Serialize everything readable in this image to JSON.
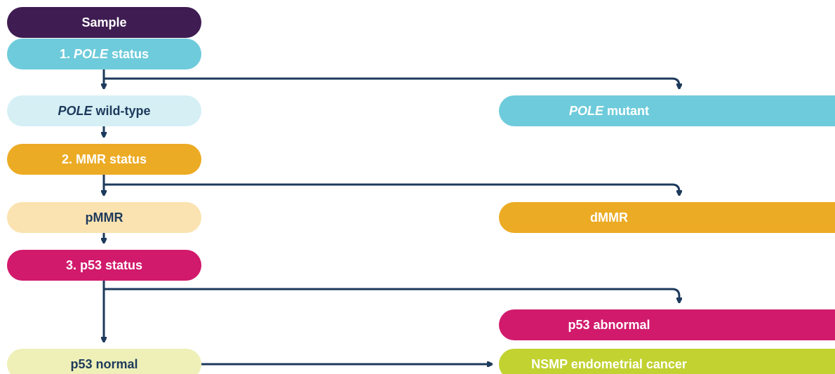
{
  "nodes": [
    {
      "label": [
        {
          "text": "Sample"
        }
      ],
      "color": "#3f1d52",
      "text_color": "#ffffff"
    },
    {
      "label": [
        {
          "text": "1. "
        },
        {
          "text": "POLE",
          "style": "italic"
        },
        {
          "text": " status"
        }
      ],
      "color": "#6ecbdb",
      "text_color": "#ffffff"
    },
    {
      "label": [
        {
          "text": "POLE",
          "style": "italic"
        },
        {
          "text": " wild-type"
        }
      ],
      "color": "#d6eff5",
      "text_color": "#1d3a5c"
    },
    {
      "label": [
        {
          "text": "2. MMR status"
        }
      ],
      "color": "#ecab24",
      "text_color": "#ffffff"
    },
    {
      "label": [
        {
          "text": "pMMR"
        }
      ],
      "color": "#fae3b0",
      "text_color": "#1d3a5c"
    },
    {
      "label": [
        {
          "text": "3. p53 status"
        }
      ],
      "color": "#d11a6c",
      "text_color": "#ffffff"
    },
    {
      "label": [
        {
          "text": "p53 normal"
        }
      ],
      "color": "#eef0b8",
      "text_color": "#1d3a5c"
    },
    {
      "label": [
        {
          "text": "POLE",
          "style": "italic"
        },
        {
          "text": " mutant"
        }
      ],
      "color": "#6ecbdb",
      "text_color": "#ffffff"
    },
    {
      "label": [
        {
          "text": "dMMR"
        }
      ],
      "color": "#ecab24",
      "text_color": "#ffffff"
    },
    {
      "label": [
        {
          "text": "p53 abnormal"
        }
      ],
      "color": "#d11a6c",
      "text_color": "#ffffff"
    },
    {
      "label": [
        {
          "text": "NSMP endometrial cancer"
        }
      ],
      "color": "#c1d231",
      "text_color": "#ffffff"
    }
  ]
}
